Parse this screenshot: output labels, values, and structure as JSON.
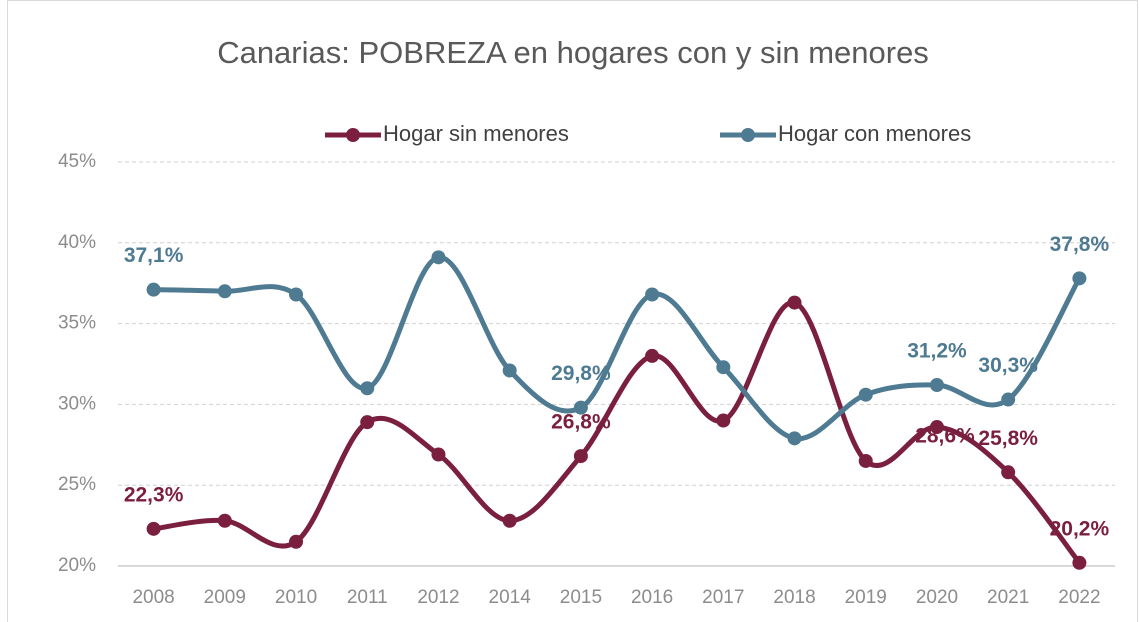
{
  "chart_data": {
    "type": "line",
    "title": "Canarias: POBREZA en hogares con y sin menores",
    "categories": [
      "2008",
      "2009",
      "2010",
      "2011",
      "2012",
      "2014",
      "2015",
      "2016",
      "2017",
      "2018",
      "2019",
      "2020",
      "2021",
      "2022"
    ],
    "series": [
      {
        "name": "Hogar sin menores",
        "color": "#7b1f3f",
        "values": [
          22.3,
          22.8,
          21.5,
          28.9,
          26.9,
          22.8,
          26.8,
          33.0,
          29.0,
          36.3,
          26.5,
          28.6,
          25.8,
          20.2
        ],
        "value_labels": [
          "22,3%",
          null,
          null,
          null,
          null,
          null,
          "26,8%",
          null,
          null,
          null,
          null,
          "28,6%",
          "25,8%",
          "20,2%"
        ]
      },
      {
        "name": "Hogar con menores",
        "color": "#4e7a92",
        "values": [
          37.1,
          37.0,
          36.8,
          31.0,
          39.1,
          32.1,
          29.8,
          36.8,
          32.3,
          27.9,
          30.6,
          31.2,
          30.3,
          37.8
        ],
        "value_labels": [
          "37,1%",
          null,
          null,
          null,
          null,
          null,
          "29,8%",
          null,
          null,
          null,
          null,
          "31,2%",
          "30,3%",
          "37,8%"
        ]
      }
    ],
    "ylim": [
      20,
      45
    ],
    "yticks": [
      {
        "value": 20,
        "label": "20%"
      },
      {
        "value": 25,
        "label": "25%"
      },
      {
        "value": 30,
        "label": "30%"
      },
      {
        "value": 35,
        "label": "35%"
      },
      {
        "value": 40,
        "label": "40%"
      },
      {
        "value": 45,
        "label": "45%"
      }
    ],
    "grid": true,
    "legend": "top"
  }
}
